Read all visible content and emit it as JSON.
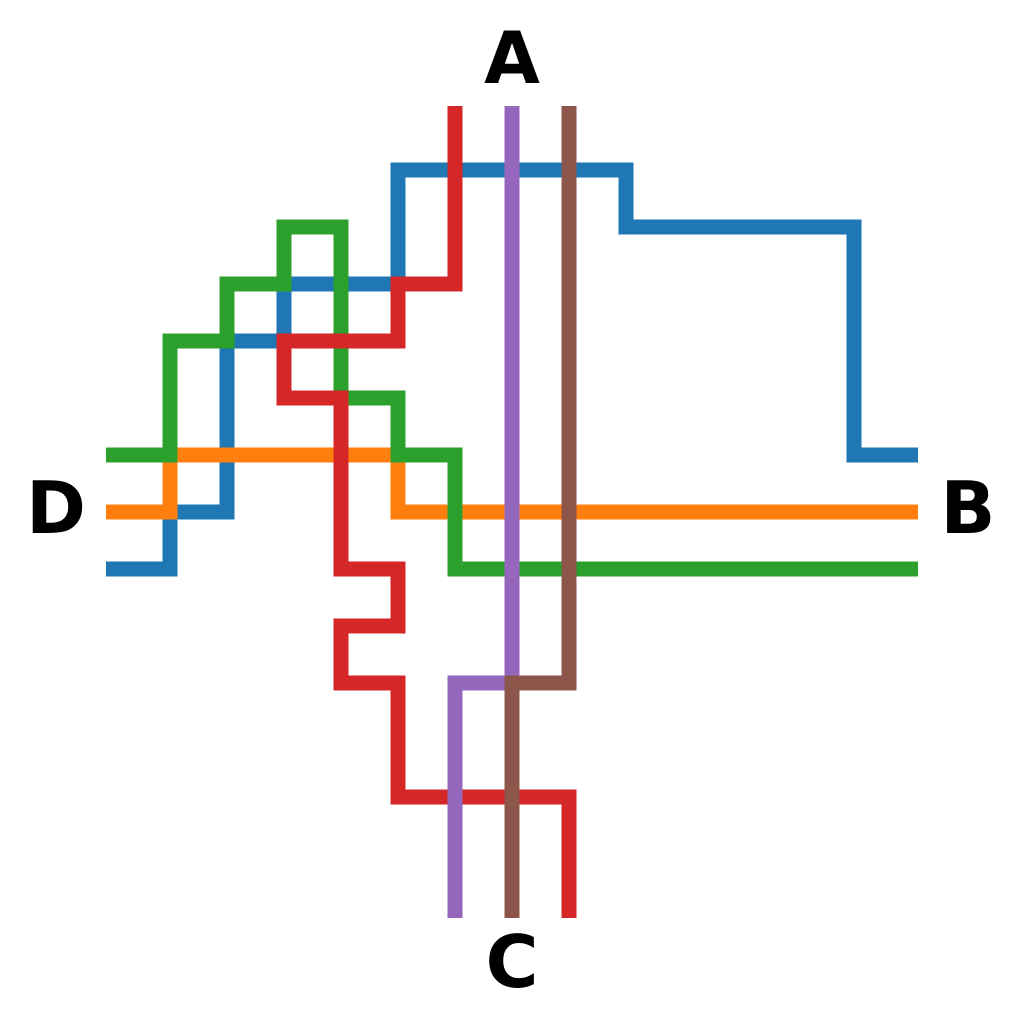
{
  "labels": {
    "top": "A",
    "right": "B",
    "bottom": "C",
    "left": "D"
  },
  "routes": [
    {
      "id": "blue",
      "color": "#1f77b4",
      "from": "B",
      "to": "D"
    },
    {
      "id": "orange",
      "color": "#ff7f0e",
      "from": "D",
      "to": "B"
    },
    {
      "id": "green",
      "color": "#2ca02c",
      "from": "D",
      "to": "B"
    },
    {
      "id": "red",
      "color": "#d62728",
      "from": "A",
      "to": "C"
    },
    {
      "id": "purple",
      "color": "#9467bd",
      "from": "A",
      "to": "C"
    },
    {
      "id": "brown",
      "color": "#8c564b",
      "from": "A",
      "to": "C"
    }
  ]
}
